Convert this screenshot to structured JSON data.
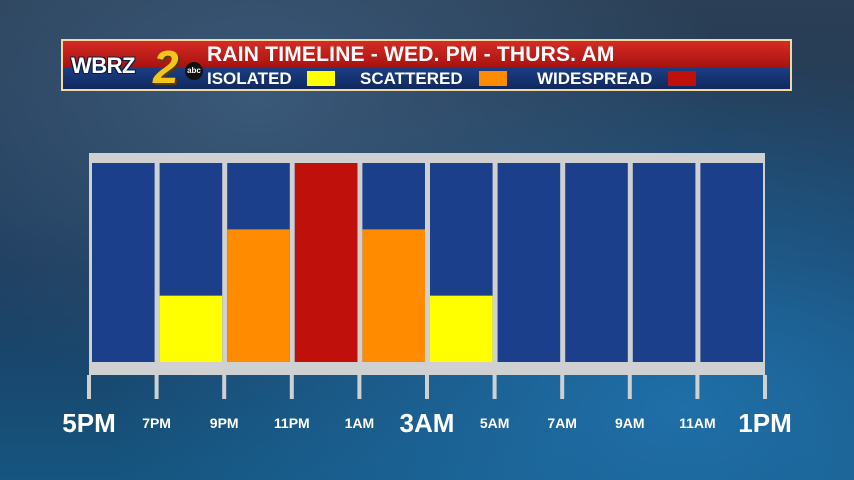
{
  "banner": {
    "logo_text": "WBRZ",
    "logo_number": "2",
    "logo_network": "abc",
    "title": "RAIN TIMELINE - WED. PM - THURS. AM",
    "legend": [
      {
        "label": "ISOLATED",
        "color": "#ffff00"
      },
      {
        "label": "SCATTERED",
        "color": "#ff8c00"
      },
      {
        "label": "WIDESPREAD",
        "color": "#c0100c"
      }
    ]
  },
  "colors": {
    "frame": "#cfd0d2",
    "cell": "#1b3f8a",
    "isolated": "#ffff00",
    "scattered": "#ff8c00",
    "widespread": "#c0100c"
  },
  "chart_data": {
    "type": "bar",
    "title": "RAIN TIMELINE - WED. PM - THURS. AM",
    "tick_labels": [
      "5PM",
      "7PM",
      "9PM",
      "11PM",
      "1AM",
      "3AM",
      "5AM",
      "7AM",
      "9AM",
      "11AM",
      "1PM"
    ],
    "major_ticks": [
      "5PM",
      "3AM",
      "1PM"
    ],
    "categories": [
      "5PM-7PM",
      "7PM-9PM",
      "9PM-11PM",
      "11PM-1AM",
      "1AM-3AM",
      "3AM-5AM",
      "5AM-7AM",
      "7AM-9AM",
      "9AM-11AM",
      "11AM-1PM"
    ],
    "values": [
      0,
      1,
      2,
      3,
      2,
      1,
      0,
      0,
      0,
      0
    ],
    "levels": [
      "",
      "ISOLATED",
      "SCATTERED",
      "WIDESPREAD"
    ],
    "ylim": [
      0,
      3
    ],
    "grid": true,
    "legend_position": "top"
  }
}
